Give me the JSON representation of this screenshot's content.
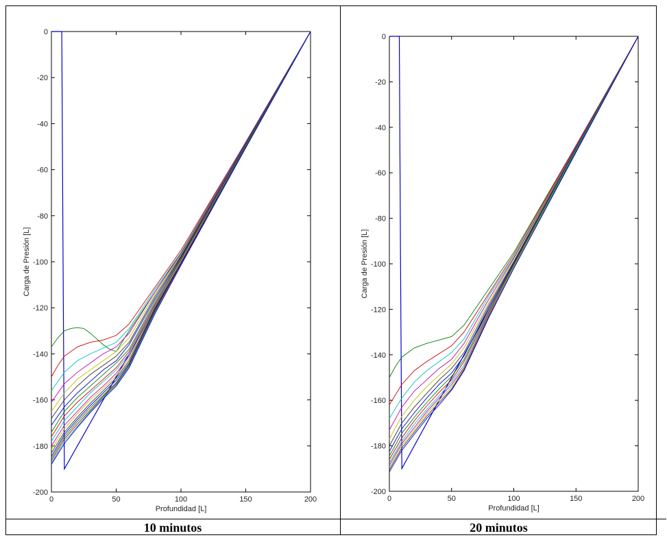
{
  "chart_data": [
    {
      "type": "line",
      "xlabel": "Profundidad [L]",
      "ylabel": "Carga de Presión [L]",
      "xlim": [
        0,
        200
      ],
      "ylim": [
        -200,
        0
      ],
      "xticks": [
        0,
        50,
        100,
        150,
        200
      ],
      "yticks": [
        0,
        -20,
        -40,
        -60,
        -80,
        -100,
        -120,
        -140,
        -160,
        -180,
        -200
      ],
      "grid": false,
      "series": [
        {
          "role": "initial-condition",
          "color": "#0000cc",
          "x": [
            0,
            8,
            9,
            10,
            200
          ],
          "y": [
            0,
            0,
            -100,
            -190,
            0
          ]
        },
        {
          "role": "profile-1",
          "color": "#007f00",
          "x": [
            0,
            5,
            10,
            15,
            20,
            25,
            30,
            35,
            40,
            45,
            50,
            60,
            80,
            100,
            150,
            200
          ],
          "y": [
            -137,
            -133,
            -130,
            -129,
            -128.6,
            -129,
            -131,
            -133.5,
            -136,
            -138,
            -139,
            -130,
            -113,
            -96,
            -48,
            0
          ]
        },
        {
          "role": "profile-2",
          "color": "#cc0000",
          "x": [
            0,
            5,
            10,
            20,
            30,
            40,
            50,
            60,
            80,
            100,
            150,
            200
          ],
          "y": [
            -150,
            -145,
            -141,
            -137,
            -135,
            -134,
            -132,
            -127,
            -111,
            -95,
            -48,
            0
          ]
        },
        {
          "role": "profile-3",
          "color": "#00bfbf",
          "x": [
            0,
            10,
            20,
            30,
            40,
            50,
            60,
            80,
            100,
            150,
            200
          ],
          "y": [
            -156,
            -148,
            -143,
            -140,
            -137.5,
            -135,
            -129,
            -112,
            -96,
            -48,
            0
          ]
        },
        {
          "role": "profile-4",
          "color": "#bf00bf",
          "x": [
            0,
            10,
            20,
            30,
            40,
            50,
            60,
            80,
            100,
            150,
            200
          ],
          "y": [
            -161,
            -153,
            -148,
            -144,
            -140,
            -137,
            -131,
            -113,
            -96.5,
            -48,
            0
          ]
        },
        {
          "role": "profile-5",
          "color": "#bfbf00",
          "x": [
            0,
            10,
            20,
            30,
            40,
            50,
            60,
            80,
            100,
            150,
            200
          ],
          "y": [
            -165,
            -157,
            -151,
            -147,
            -143,
            -139,
            -133,
            -114,
            -97,
            -48.5,
            0
          ]
        },
        {
          "role": "profile-6",
          "color": "#333333",
          "x": [
            0,
            10,
            20,
            30,
            40,
            50,
            60,
            80,
            100,
            150,
            200
          ],
          "y": [
            -168,
            -160,
            -154,
            -149,
            -145,
            -141,
            -135,
            -115,
            -97.5,
            -48.5,
            0
          ]
        },
        {
          "role": "profile-7",
          "color": "#0000cc",
          "x": [
            0,
            10,
            20,
            30,
            40,
            50,
            60,
            80,
            100,
            150,
            200
          ],
          "y": [
            -171,
            -163,
            -157,
            -152,
            -147,
            -143,
            -136,
            -116,
            -98,
            -49,
            0
          ]
        },
        {
          "role": "profile-8",
          "color": "#007f00",
          "x": [
            0,
            10,
            20,
            30,
            40,
            50,
            60,
            80,
            100,
            150,
            200
          ],
          "y": [
            -174,
            -165,
            -159,
            -154,
            -149,
            -144,
            -138,
            -117,
            -98.5,
            -49,
            0
          ]
        },
        {
          "role": "profile-9",
          "color": "#cc0000",
          "x": [
            0,
            10,
            20,
            30,
            40,
            50,
            60,
            80,
            100,
            150,
            200
          ],
          "y": [
            -176,
            -167,
            -161,
            -156,
            -151,
            -146,
            -139,
            -118,
            -99,
            -49.5,
            0
          ]
        },
        {
          "role": "profile-10",
          "color": "#00bfbf",
          "x": [
            0,
            10,
            20,
            30,
            40,
            50,
            60,
            80,
            100,
            150,
            200
          ],
          "y": [
            -178,
            -169,
            -163,
            -157,
            -152,
            -147,
            -140,
            -118.5,
            -99.5,
            -49.5,
            0
          ]
        },
        {
          "role": "profile-11",
          "color": "#bf00bf",
          "x": [
            0,
            10,
            20,
            30,
            40,
            50,
            60,
            80,
            100,
            150,
            200
          ],
          "y": [
            -180,
            -171,
            -165,
            -159,
            -154,
            -148.5,
            -141,
            -119,
            -100,
            -49.5,
            0
          ]
        },
        {
          "role": "profile-12",
          "color": "#bfbf00",
          "x": [
            0,
            10,
            20,
            30,
            40,
            50,
            60,
            80,
            100,
            150,
            200
          ],
          "y": [
            -181.5,
            -172.5,
            -166,
            -160,
            -155,
            -149.5,
            -142,
            -119.5,
            -100,
            -50,
            0
          ]
        },
        {
          "role": "profile-13",
          "color": "#333333",
          "x": [
            0,
            10,
            20,
            30,
            40,
            50,
            60,
            80,
            100,
            150,
            200
          ],
          "y": [
            -183,
            -174,
            -167.5,
            -161.5,
            -156,
            -150.5,
            -143,
            -120,
            -100.5,
            -50,
            0
          ]
        },
        {
          "role": "profile-14",
          "color": "#0000cc",
          "x": [
            0,
            10,
            20,
            30,
            40,
            50,
            60,
            80,
            100,
            150,
            200
          ],
          "y": [
            -184.5,
            -175,
            -168.5,
            -162.5,
            -157,
            -151.5,
            -144,
            -120.5,
            -100.5,
            -50,
            0
          ]
        },
        {
          "role": "profile-15",
          "color": "#007f00",
          "x": [
            0,
            10,
            20,
            30,
            40,
            50,
            60,
            80,
            100,
            150,
            200
          ],
          "y": [
            -185.5,
            -176,
            -169.5,
            -163.5,
            -158,
            -152.5,
            -144.5,
            -121,
            -101,
            -50,
            0
          ]
        },
        {
          "role": "profile-16",
          "color": "#cc0000",
          "x": [
            0,
            10,
            20,
            30,
            40,
            50,
            60,
            80,
            100,
            150,
            200
          ],
          "y": [
            -186.5,
            -177,
            -170.5,
            -164.5,
            -158.5,
            -153,
            -145,
            -121.5,
            -101,
            -50.5,
            0
          ]
        },
        {
          "role": "profile-17",
          "color": "#00bfbf",
          "x": [
            0,
            10,
            20,
            30,
            40,
            50,
            60,
            80,
            100,
            150,
            200
          ],
          "y": [
            -187.5,
            -178,
            -171.5,
            -165,
            -159,
            -153.5,
            -145.5,
            -122,
            -101.5,
            -50.5,
            0
          ]
        },
        {
          "role": "profile-18",
          "color": "#0000cc",
          "x": [
            0,
            10,
            20,
            30,
            40,
            50,
            60,
            80,
            100,
            150,
            200
          ],
          "y": [
            -188,
            -179,
            -172,
            -165.5,
            -159.5,
            -154,
            -146,
            -122.5,
            -101.5,
            -50.5,
            0
          ]
        }
      ]
    },
    {
      "type": "line",
      "xlabel": "Profundidad [L]",
      "ylabel": "Carga de Presión [L]",
      "xlim": [
        0,
        200
      ],
      "ylim": [
        -200,
        0
      ],
      "xticks": [
        0,
        50,
        100,
        150,
        200
      ],
      "yticks": [
        0,
        -20,
        -40,
        -60,
        -80,
        -100,
        -120,
        -140,
        -160,
        -180,
        -200
      ],
      "grid": false,
      "series": [
        {
          "role": "initial-condition",
          "color": "#0000cc",
          "x": [
            0,
            8,
            9,
            10,
            200
          ],
          "y": [
            0,
            0,
            -100,
            -190,
            0
          ]
        },
        {
          "role": "profile-1",
          "color": "#007f00",
          "x": [
            0,
            5,
            10,
            20,
            30,
            40,
            50,
            60,
            80,
            100,
            150,
            200
          ],
          "y": [
            -150,
            -145,
            -141,
            -137,
            -135,
            -133.5,
            -132,
            -127,
            -111,
            -95,
            -48,
            0
          ]
        },
        {
          "role": "profile-2",
          "color": "#cc0000",
          "x": [
            0,
            10,
            20,
            30,
            40,
            50,
            60,
            80,
            100,
            150,
            200
          ],
          "y": [
            -162,
            -153,
            -147,
            -143,
            -139.5,
            -136,
            -130,
            -113,
            -96,
            -48,
            0
          ]
        },
        {
          "role": "profile-3",
          "color": "#00bfbf",
          "x": [
            0,
            10,
            20,
            30,
            40,
            50,
            60,
            80,
            100,
            150,
            200
          ],
          "y": [
            -168,
            -159,
            -152,
            -147,
            -143,
            -139,
            -133,
            -114,
            -97,
            -48.5,
            0
          ]
        },
        {
          "role": "profile-4",
          "color": "#bf00bf",
          "x": [
            0,
            10,
            20,
            30,
            40,
            50,
            60,
            80,
            100,
            150,
            200
          ],
          "y": [
            -173,
            -163,
            -156,
            -151,
            -146,
            -142,
            -135,
            -115.5,
            -97.5,
            -48.5,
            0
          ]
        },
        {
          "role": "profile-5",
          "color": "#bfbf00",
          "x": [
            0,
            10,
            20,
            30,
            40,
            50,
            60,
            80,
            100,
            150,
            200
          ],
          "y": [
            -177,
            -167,
            -160,
            -154,
            -149,
            -144,
            -137,
            -117,
            -98,
            -49,
            0
          ]
        },
        {
          "role": "profile-6",
          "color": "#333333",
          "x": [
            0,
            10,
            20,
            30,
            40,
            50,
            60,
            80,
            100,
            150,
            200
          ],
          "y": [
            -180,
            -170,
            -163,
            -157,
            -151,
            -146,
            -139,
            -118,
            -99,
            -49,
            0
          ]
        },
        {
          "role": "profile-7",
          "color": "#0000cc",
          "x": [
            0,
            10,
            20,
            30,
            40,
            50,
            60,
            80,
            100,
            150,
            200
          ],
          "y": [
            -182.5,
            -172.5,
            -165.5,
            -159,
            -153,
            -148,
            -140.5,
            -119,
            -99.5,
            -49.5,
            0
          ]
        },
        {
          "role": "profile-8",
          "color": "#007f00",
          "x": [
            0,
            10,
            20,
            30,
            40,
            50,
            60,
            80,
            100,
            150,
            200
          ],
          "y": [
            -184.5,
            -174.5,
            -167.5,
            -161,
            -155,
            -149.5,
            -142,
            -120,
            -100,
            -49.5,
            0
          ]
        },
        {
          "role": "profile-9",
          "color": "#cc0000",
          "x": [
            0,
            10,
            20,
            30,
            40,
            50,
            60,
            80,
            100,
            150,
            200
          ],
          "y": [
            -186,
            -176.5,
            -169,
            -162.5,
            -156.5,
            -151,
            -143,
            -121,
            -100.5,
            -50,
            0
          ]
        },
        {
          "role": "profile-10",
          "color": "#00bfbf",
          "x": [
            0,
            10,
            20,
            30,
            40,
            50,
            60,
            80,
            100,
            150,
            200
          ],
          "y": [
            -187.5,
            -178,
            -170.5,
            -164,
            -158,
            -152,
            -144.5,
            -121.5,
            -101,
            -50,
            0
          ]
        },
        {
          "role": "profile-11",
          "color": "#bf00bf",
          "x": [
            0,
            10,
            20,
            30,
            40,
            50,
            60,
            80,
            100,
            150,
            200
          ],
          "y": [
            -188.5,
            -179,
            -172,
            -165,
            -159,
            -153,
            -145.5,
            -122,
            -101.5,
            -50.5,
            0
          ]
        },
        {
          "role": "profile-12",
          "color": "#bfbf00",
          "x": [
            0,
            10,
            20,
            30,
            40,
            50,
            60,
            80,
            100,
            150,
            200
          ],
          "y": [
            -189.5,
            -180,
            -173,
            -166,
            -160,
            -154,
            -146,
            -122.5,
            -101.5,
            -50.5,
            0
          ]
        },
        {
          "role": "profile-13",
          "color": "#333333",
          "x": [
            0,
            10,
            20,
            30,
            40,
            50,
            60,
            80,
            100,
            150,
            200
          ],
          "y": [
            -190.5,
            -181,
            -174,
            -167,
            -161,
            -155,
            -146.5,
            -123,
            -102,
            -50.5,
            0
          ]
        },
        {
          "role": "profile-14",
          "color": "#0000cc",
          "x": [
            0,
            10,
            20,
            30,
            40,
            50,
            60,
            80,
            100,
            150,
            200
          ],
          "y": [
            -191.5,
            -182,
            -175,
            -168,
            -162,
            -155.5,
            -147,
            -123.5,
            -102,
            -51,
            0
          ]
        }
      ]
    }
  ],
  "captions": {
    "left": "10 minutos",
    "right": "20 minutos"
  }
}
